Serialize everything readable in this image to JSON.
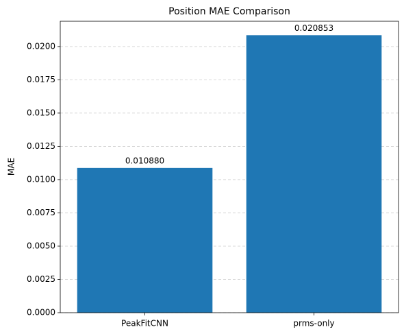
{
  "chart_data": {
    "type": "bar",
    "title": "Position MAE Comparison",
    "y_label": "MAE",
    "categories": [
      "PeakFitCNN",
      "prms-only"
    ],
    "values": [
      0.01088,
      0.020853
    ],
    "value_labels": [
      "0.010880",
      "0.020853"
    ],
    "color": "#1f77b4",
    "ylim": [
      0,
      0.0219
    ],
    "yticks": [
      {
        "value": 0,
        "label": "0.0000"
      },
      {
        "value": 0.0025,
        "label": "0.0025"
      },
      {
        "value": 0.005,
        "label": "0.0050"
      },
      {
        "value": 0.0075,
        "label": "0.0075"
      },
      {
        "value": 0.01,
        "label": "0.0100"
      },
      {
        "value": 0.0125,
        "label": "0.0125"
      },
      {
        "value": 0.015,
        "label": "0.0150"
      },
      {
        "value": 0.0175,
        "label": "0.0175"
      },
      {
        "value": 0.02,
        "label": "0.0200"
      }
    ],
    "grid": true
  }
}
